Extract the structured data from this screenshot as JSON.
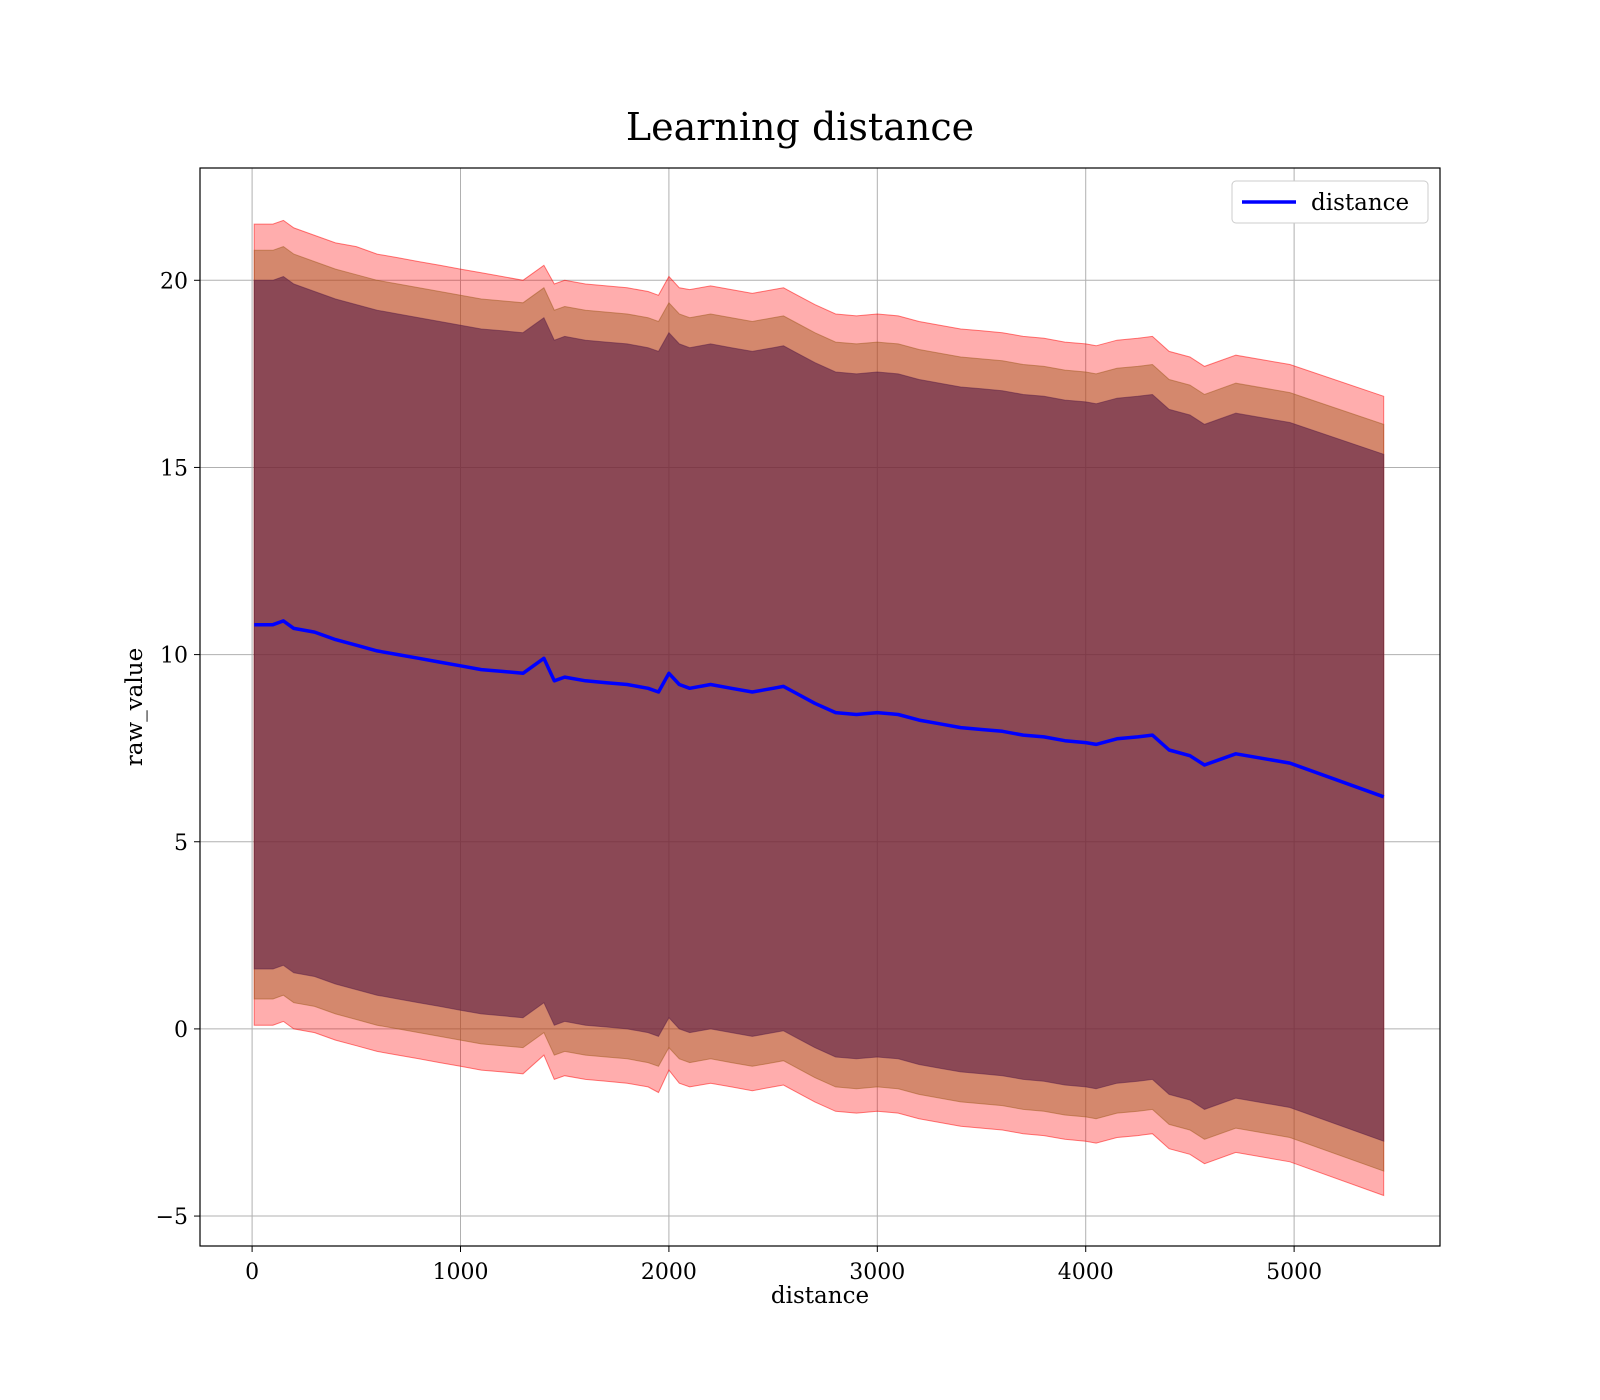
{
  "chart_data": {
    "type": "line",
    "title": "Learning distance",
    "xlabel": "distance",
    "ylabel": "raw_value",
    "xlim": [
      -250,
      5700
    ],
    "ylim": [
      -5.8,
      23
    ],
    "xticks": [
      0,
      1000,
      2000,
      3000,
      4000,
      5000
    ],
    "yticks": [
      -5,
      0,
      5,
      10,
      15,
      20
    ],
    "tick_labels_x": [
      "0",
      "1000",
      "2000",
      "3000",
      "4000",
      "5000"
    ],
    "tick_labels_y": [
      "−5",
      "0",
      "5",
      "10",
      "15",
      "20"
    ],
    "grid": true,
    "legend": {
      "placement": "top-right",
      "entries": [
        "distance"
      ]
    },
    "colors": {
      "line": "#0000ff",
      "band_outer": "#ff0000",
      "band_middle": "#a05a1e",
      "band_inner": "#5a1e46"
    },
    "series": [
      {
        "name": "distance",
        "x": [
          10,
          100,
          150,
          200,
          300,
          400,
          500,
          600,
          700,
          800,
          900,
          1000,
          1100,
          1200,
          1300,
          1400,
          1450,
          1500,
          1600,
          1700,
          1800,
          1900,
          1950,
          2000,
          2050,
          2100,
          2200,
          2300,
          2400,
          2500,
          2550,
          2600,
          2700,
          2800,
          2900,
          3000,
          3100,
          3200,
          3300,
          3400,
          3500,
          3600,
          3700,
          3800,
          3900,
          4000,
          4050,
          4150,
          4250,
          4320,
          4400,
          4500,
          4570,
          4720,
          4980,
          5430
        ],
        "y": [
          10.8,
          10.8,
          10.9,
          10.7,
          10.6,
          10.4,
          10.25,
          10.1,
          10.0,
          9.9,
          9.8,
          9.7,
          9.6,
          9.55,
          9.5,
          9.9,
          9.3,
          9.4,
          9.3,
          9.25,
          9.2,
          9.1,
          9.0,
          9.5,
          9.2,
          9.1,
          9.2,
          9.1,
          9.0,
          9.1,
          9.15,
          9.0,
          8.7,
          8.45,
          8.4,
          8.45,
          8.4,
          8.25,
          8.15,
          8.05,
          8.0,
          7.95,
          7.85,
          7.8,
          7.7,
          7.65,
          7.6,
          7.75,
          7.8,
          7.85,
          7.45,
          7.3,
          7.05,
          7.35,
          7.1,
          6.2
        ]
      }
    ],
    "bands": [
      {
        "upper": [
          21.5,
          21.5,
          21.6,
          21.4,
          21.2,
          21.0,
          20.9,
          20.7,
          20.6,
          20.5,
          20.4,
          20.3,
          20.2,
          20.1,
          20.0,
          20.4,
          19.9,
          20.0,
          19.9,
          19.85,
          19.8,
          19.7,
          19.6,
          20.1,
          19.8,
          19.75,
          19.85,
          19.75,
          19.65,
          19.75,
          19.8,
          19.65,
          19.35,
          19.1,
          19.05,
          19.1,
          19.05,
          18.9,
          18.8,
          18.7,
          18.65,
          18.6,
          18.5,
          18.45,
          18.35,
          18.3,
          18.25,
          18.4,
          18.45,
          18.5,
          18.1,
          17.95,
          17.7,
          18.0,
          17.75,
          16.9
        ],
        "lower": [
          0.1,
          0.1,
          0.2,
          0.0,
          -0.1,
          -0.3,
          -0.45,
          -0.6,
          -0.7,
          -0.8,
          -0.9,
          -1.0,
          -1.1,
          -1.15,
          -1.2,
          -0.7,
          -1.35,
          -1.25,
          -1.35,
          -1.4,
          -1.45,
          -1.55,
          -1.7,
          -1.1,
          -1.45,
          -1.55,
          -1.45,
          -1.55,
          -1.65,
          -1.55,
          -1.5,
          -1.65,
          -1.95,
          -2.2,
          -2.25,
          -2.2,
          -2.25,
          -2.4,
          -2.5,
          -2.6,
          -2.65,
          -2.7,
          -2.8,
          -2.85,
          -2.95,
          -3.0,
          -3.05,
          -2.9,
          -2.85,
          -2.8,
          -3.2,
          -3.35,
          -3.6,
          -3.3,
          -3.55,
          -4.45
        ]
      },
      {
        "upper": [
          20.8,
          20.8,
          20.9,
          20.7,
          20.5,
          20.3,
          20.15,
          20.0,
          19.9,
          19.8,
          19.7,
          19.6,
          19.5,
          19.45,
          19.4,
          19.8,
          19.2,
          19.3,
          19.2,
          19.15,
          19.1,
          19.0,
          18.9,
          19.4,
          19.1,
          19.0,
          19.1,
          19.0,
          18.9,
          19.0,
          19.05,
          18.9,
          18.6,
          18.35,
          18.3,
          18.35,
          18.3,
          18.15,
          18.05,
          17.95,
          17.9,
          17.85,
          17.75,
          17.7,
          17.6,
          17.55,
          17.5,
          17.65,
          17.7,
          17.75,
          17.35,
          17.2,
          16.95,
          17.25,
          17.0,
          16.15
        ],
        "lower": [
          0.8,
          0.8,
          0.9,
          0.7,
          0.6,
          0.4,
          0.25,
          0.1,
          0.0,
          -0.1,
          -0.2,
          -0.3,
          -0.4,
          -0.45,
          -0.5,
          -0.1,
          -0.7,
          -0.6,
          -0.7,
          -0.75,
          -0.8,
          -0.9,
          -1.0,
          -0.5,
          -0.8,
          -0.9,
          -0.8,
          -0.9,
          -1.0,
          -0.9,
          -0.85,
          -1.0,
          -1.3,
          -1.55,
          -1.6,
          -1.55,
          -1.6,
          -1.75,
          -1.85,
          -1.95,
          -2.0,
          -2.05,
          -2.15,
          -2.2,
          -2.3,
          -2.35,
          -2.4,
          -2.25,
          -2.2,
          -2.15,
          -2.55,
          -2.7,
          -2.95,
          -2.65,
          -2.9,
          -3.8
        ]
      },
      {
        "upper": [
          20.0,
          20.0,
          20.1,
          19.9,
          19.7,
          19.5,
          19.35,
          19.2,
          19.1,
          19.0,
          18.9,
          18.8,
          18.7,
          18.65,
          18.6,
          19.0,
          18.4,
          18.5,
          18.4,
          18.35,
          18.3,
          18.2,
          18.1,
          18.6,
          18.3,
          18.2,
          18.3,
          18.2,
          18.1,
          18.2,
          18.25,
          18.1,
          17.8,
          17.55,
          17.5,
          17.55,
          17.5,
          17.35,
          17.25,
          17.15,
          17.1,
          17.05,
          16.95,
          16.9,
          16.8,
          16.75,
          16.7,
          16.85,
          16.9,
          16.95,
          16.55,
          16.4,
          16.15,
          16.45,
          16.2,
          15.35
        ],
        "lower": [
          1.6,
          1.6,
          1.7,
          1.5,
          1.4,
          1.2,
          1.05,
          0.9,
          0.8,
          0.7,
          0.6,
          0.5,
          0.4,
          0.35,
          0.3,
          0.7,
          0.1,
          0.2,
          0.1,
          0.05,
          0.0,
          -0.1,
          -0.2,
          0.3,
          0.0,
          -0.1,
          0.0,
          -0.1,
          -0.2,
          -0.1,
          -0.05,
          -0.2,
          -0.5,
          -0.75,
          -0.8,
          -0.75,
          -0.8,
          -0.95,
          -1.05,
          -1.15,
          -1.2,
          -1.25,
          -1.35,
          -1.4,
          -1.5,
          -1.55,
          -1.6,
          -1.45,
          -1.4,
          -1.35,
          -1.75,
          -1.9,
          -2.15,
          -1.85,
          -2.1,
          -3.0
        ]
      }
    ]
  }
}
